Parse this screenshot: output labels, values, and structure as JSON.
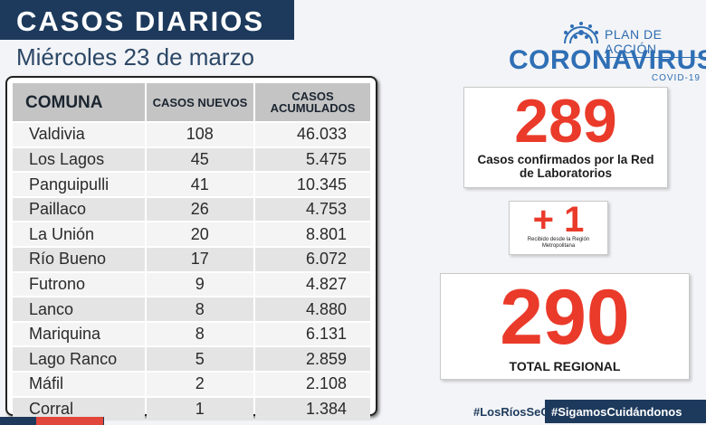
{
  "header": {
    "title": "CASOS DIARIOS",
    "date": "Miércoles 23 de marzo"
  },
  "table": {
    "columns": [
      "COMUNA",
      "CASOS NUEVOS",
      "CASOS ACUMULADOS"
    ],
    "rows": [
      {
        "comuna": "Valdivia",
        "nuevos": "108",
        "acumulados": "46.033"
      },
      {
        "comuna": "Los Lagos",
        "nuevos": "45",
        "acumulados": "5.475"
      },
      {
        "comuna": "Panguipulli",
        "nuevos": "41",
        "acumulados": "10.345"
      },
      {
        "comuna": "Paillaco",
        "nuevos": "26",
        "acumulados": "4.753"
      },
      {
        "comuna": "La Unión",
        "nuevos": "20",
        "acumulados": "8.801"
      },
      {
        "comuna": "Río Bueno",
        "nuevos": "17",
        "acumulados": "6.072"
      },
      {
        "comuna": "Futrono",
        "nuevos": "9",
        "acumulados": "4.827"
      },
      {
        "comuna": "Lanco",
        "nuevos": "8",
        "acumulados": "4.880"
      },
      {
        "comuna": "Mariquina",
        "nuevos": "8",
        "acumulados": "6.131"
      },
      {
        "comuna": "Lago Ranco",
        "nuevos": "5",
        "acumulados": "2.859"
      },
      {
        "comuna": "Máfil",
        "nuevos": "2",
        "acumulados": "2.108"
      },
      {
        "comuna": "Corral",
        "nuevos": "1",
        "acumulados": "1.384"
      }
    ]
  },
  "logo": {
    "plan": "PLAN DE ACCIÓN",
    "name": "CORONAVIRUS",
    "covid": "COVID-19"
  },
  "stats": {
    "confirmed_value": "289",
    "confirmed_label": "Casos confirmados por la Red de Laboratorios",
    "extra_value": "+ 1",
    "extra_label": "Recibido desde la Región Metropolitana",
    "total_value": "290",
    "total_label": "TOTAL REGIONAL"
  },
  "hashtags": {
    "tag1": "#LosRíosSeCuida",
    "tag2": "#SigamosCuidándonos"
  },
  "colors": {
    "navy": "#1d3a5c",
    "accent_red": "#ea3a2a",
    "logo_blue": "#2f6fb5"
  }
}
